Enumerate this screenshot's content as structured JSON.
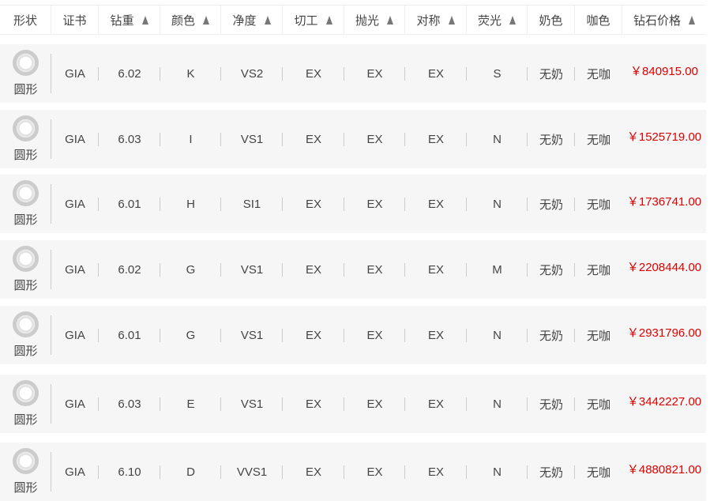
{
  "columns": [
    {
      "label": "形状",
      "sortable": false
    },
    {
      "label": "证书",
      "sortable": false
    },
    {
      "label": "钻重",
      "sortable": true
    },
    {
      "label": "颜色",
      "sortable": true
    },
    {
      "label": "净度",
      "sortable": true
    },
    {
      "label": "切工",
      "sortable": true
    },
    {
      "label": "抛光",
      "sortable": true
    },
    {
      "label": "对称",
      "sortable": true
    },
    {
      "label": "荧光",
      "sortable": true
    },
    {
      "label": "奶色",
      "sortable": false
    },
    {
      "label": "咖色",
      "sortable": false
    },
    {
      "label": "钻石价格",
      "sortable": true
    }
  ],
  "rows": [
    {
      "shape": "圆形",
      "cert": "GIA",
      "carat": "6.02",
      "color": "K",
      "clarity": "VS2",
      "cut": "EX",
      "polish": "EX",
      "symmetry": "EX",
      "fluor": "S",
      "milky": "无奶",
      "brown": "无咖",
      "price": "￥840915.00"
    },
    {
      "shape": "圆形",
      "cert": "GIA",
      "carat": "6.03",
      "color": "I",
      "clarity": "VS1",
      "cut": "EX",
      "polish": "EX",
      "symmetry": "EX",
      "fluor": "N",
      "milky": "无奶",
      "brown": "无咖",
      "price": "￥1525719.00"
    },
    {
      "shape": "圆形",
      "cert": "GIA",
      "carat": "6.01",
      "color": "H",
      "clarity": "SI1",
      "cut": "EX",
      "polish": "EX",
      "symmetry": "EX",
      "fluor": "N",
      "milky": "无奶",
      "brown": "无咖",
      "price": "￥1736741.00"
    },
    {
      "shape": "圆形",
      "cert": "GIA",
      "carat": "6.02",
      "color": "G",
      "clarity": "VS1",
      "cut": "EX",
      "polish": "EX",
      "symmetry": "EX",
      "fluor": "M",
      "milky": "无奶",
      "brown": "无咖",
      "price": "￥2208444.00"
    },
    {
      "shape": "圆形",
      "cert": "GIA",
      "carat": "6.01",
      "color": "G",
      "clarity": "VS1",
      "cut": "EX",
      "polish": "EX",
      "symmetry": "EX",
      "fluor": "N",
      "milky": "无奶",
      "brown": "无咖",
      "price": "￥2931796.00"
    },
    {
      "shape": "圆形",
      "cert": "GIA",
      "carat": "6.03",
      "color": "E",
      "clarity": "VS1",
      "cut": "EX",
      "polish": "EX",
      "symmetry": "EX",
      "fluor": "N",
      "milky": "无奶",
      "brown": "无咖",
      "price": "￥3442227.00"
    },
    {
      "shape": "圆形",
      "cert": "GIA",
      "carat": "6.10",
      "color": "D",
      "clarity": "VVS1",
      "cut": "EX",
      "polish": "EX",
      "symmetry": "EX",
      "fluor": "N",
      "milky": "无奶",
      "brown": "无咖",
      "price": "￥4880821.00"
    }
  ],
  "colors": {
    "price": "#dd0000",
    "row_bg": "#f6f6f6"
  },
  "icons": {
    "shape": "round-diamond-icon",
    "sort": "sort-arrow-up-icon"
  }
}
